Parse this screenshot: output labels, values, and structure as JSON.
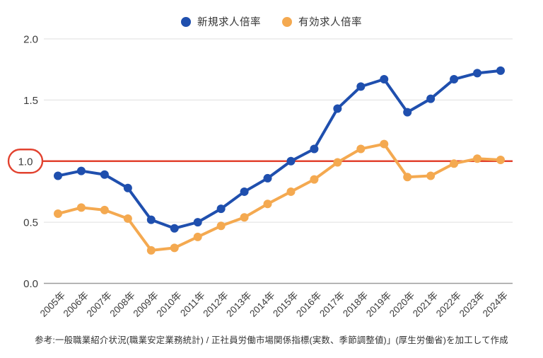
{
  "legend": {
    "items": [
      {
        "label": "新規求人倍率",
        "color": "#1f4fae"
      },
      {
        "label": "有効求人倍率",
        "color": "#f4a950"
      }
    ]
  },
  "caption": "参考:一般職業紹介状況(職業安定業務統計) / 正社員労働市場関係指標(実数、季節調整値)」(厚生労働省)を加工して作成",
  "chart_data": {
    "type": "line",
    "x": [
      "2005年",
      "2006年",
      "2007年",
      "2008年",
      "2009年",
      "2010年",
      "2011年",
      "2012年",
      "2013年",
      "2014年",
      "2015年",
      "2016年",
      "2017年",
      "2018年",
      "2019年",
      "2020年",
      "2021年",
      "2022年",
      "2023年",
      "2024年"
    ],
    "series": [
      {
        "name": "新規求人倍率",
        "color": "#1f4fae",
        "values": [
          0.88,
          0.92,
          0.89,
          0.78,
          0.52,
          0.45,
          0.5,
          0.61,
          0.75,
          0.86,
          1.0,
          1.1,
          1.43,
          1.61,
          1.67,
          1.4,
          1.51,
          1.67,
          1.72,
          1.74
        ]
      },
      {
        "name": "有効求人倍率",
        "color": "#f4a950",
        "values": [
          0.57,
          0.62,
          0.6,
          0.53,
          0.27,
          0.29,
          0.38,
          0.47,
          0.54,
          0.65,
          0.75,
          0.85,
          0.99,
          1.1,
          1.14,
          0.87,
          0.88,
          0.98,
          1.02,
          1.01
        ]
      }
    ],
    "title": "",
    "xlabel": "",
    "ylabel": "",
    "ylim": [
      0.0,
      2.0
    ],
    "yticks": [
      0.0,
      0.5,
      1.0,
      1.5,
      2.0
    ],
    "ytick_labels": [
      "0.0",
      "0.5",
      "1.0",
      "1.5",
      "2.0"
    ],
    "reference_line": {
      "value": 1.0,
      "label": "1.0",
      "label_circled": true,
      "color": "#e2422f"
    },
    "grid": true,
    "legend_position": "top-center",
    "axis_line_color": "#9b9b9b",
    "gridline_color": "#e5e5e5"
  }
}
